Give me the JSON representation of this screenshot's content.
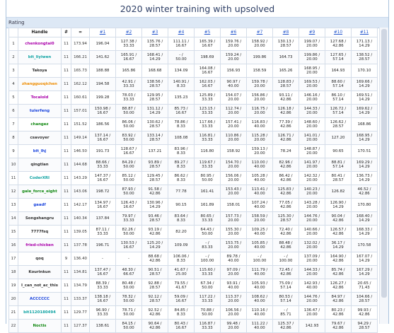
{
  "page": {
    "title": "2020 winter training with upsolved"
  },
  "panel": {
    "label": "Rating"
  },
  "columns": [
    "",
    "Handle",
    "#",
    "=",
    "#1",
    "#2",
    "#3",
    "#4",
    "#5",
    "#6",
    "#7",
    "#8",
    "#9",
    "#10",
    "#11"
  ],
  "colors": {
    "red": "#e0201d",
    "orange": "#ee8c00",
    "violet": "#aa00aa",
    "blue": "#1a44dd",
    "cyan": "#10a3a3",
    "green": "#118811",
    "gray": "#333333"
  },
  "rows": [
    {
      "rank": "1",
      "handle": "chenkongtai0",
      "color": "violet",
      "solved": "11",
      "total": "173.94",
      "cells": [
        "196.04",
        "127.38 / 33.33",
        "135.76 / 28.57",
        "111.11 / 16.67",
        "165.39 / 16.67",
        "159.76 / 20.00",
        "158.92 / 20.00",
        "130.13 / 28.57",
        "199.07 / 20.00",
        "127.68 / 42.86",
        "171.13 / 14.29"
      ]
    },
    {
      "rank": "2",
      "handle": "bit_liyiwen",
      "color": "cyan",
      "solved": "11",
      "total": "166.21",
      "cells": [
        "141.62",
        "165.91 / 16.67",
        "168.41 / 14.29",
        "- / 50.00",
        "198.69",
        "159.24 / 20.00",
        "199.86",
        "164.73",
        "199.86 / 20.00",
        "127.65 / 57.14",
        "138.52 / 28.57"
      ]
    },
    {
      "rank": "3",
      "handle": "Takoya",
      "color": "gray",
      "solved": "11",
      "total": "165.73",
      "cells": [
        "188.88",
        "165.86",
        "168.68",
        "134.09",
        "164.08 / 16.67",
        "156.93",
        "158.59",
        "165.26",
        "168.95 / 20.00",
        "164.93",
        "170.10"
      ]
    },
    {
      "rank": "4",
      "handle": "zhangguoqichen",
      "color": "orange",
      "solved": "11",
      "total": "162.12",
      "cells": [
        "194.58",
        "42.91 / 33.33",
        "138.56 / 28.57",
        "140.91 / 8.33",
        "162.03 / 16.67",
        "90.97 / 40.00",
        "159.78 / 20.00",
        "128.83 / 28.57",
        "169.53 / 20.00",
        "88.60 / 57.14",
        "169.66 / 14.29"
      ]
    },
    {
      "rank": "5",
      "handle": "Tocalold",
      "color": "violet",
      "solved": "11",
      "total": "160.61",
      "cells": [
        "199.28",
        "78.03 / 33.33",
        "129.95 / 28.57",
        "135.23",
        "125.89 / 33.33",
        "154.07 / 20.00",
        "156.86 / 20.00",
        "93.11 / 42.86",
        "146.16 / 20.00",
        "86.10 / 57.14",
        "169.51 / 14.29"
      ]
    },
    {
      "rank": "6",
      "handle": "tulerfeng",
      "color": "blue",
      "solved": "11",
      "total": "157.01",
      "cells": [
        "150.98 / 16.67",
        "88.87 / 50.00",
        "131.12 / 14.29",
        "85.73 / 16.67",
        "123.15 / 33.33",
        "112.74 / 20.00",
        "116.75 / 20.00",
        "126.18 / 42.86",
        "144.33 / 20.00",
        "126.72 / 57.14",
        "169.62 / 14.29"
      ]
    },
    {
      "rank": "7",
      "handle": "changez",
      "color": "green",
      "solved": "11",
      "total": "151.52",
      "cells": [
        "186.56",
        "86.06 / 50.00",
        "130.62 / 28.57",
        "78.86 / 8.33",
        "117.66 / 33.33",
        "157.41 / 20.00",
        "116.83 / 40.00",
        "77.39 / 42.86",
        "148.60 / 20.00",
        "126.62 / 28.57",
        "168.86"
      ]
    },
    {
      "rank": "8",
      "handle": "csavoyer",
      "color": "gray",
      "solved": "11",
      "total": "149.14",
      "cells": [
        "137.14 / 16.67",
        "83.92 / 50.00",
        "133.14 / 28.57",
        "108.08",
        "116.81 / 33.33",
        "110.86 / 20.00",
        "115.28 / 20.00",
        "126.71 / 42.86",
        "141.01 / 20.00",
        "127.20",
        "168.95 / 14.29"
      ]
    },
    {
      "rank": "9",
      "handle": "bit_lhj",
      "color": "blue",
      "solved": "11",
      "total": "146.50",
      "cells": [
        "191.73",
        "128.67 / 16.67",
        "137.21",
        "83.96 / 8.33",
        "116.80",
        "158.92",
        "159.13 / 20.00",
        "78.24",
        "148.87 / 20.00",
        "90.65",
        "170.51"
      ]
    },
    {
      "rank": "10",
      "handle": "qingtian",
      "color": "gray",
      "solved": "11",
      "total": "144.68",
      "cells": [
        "88.66 / 33.33",
        "84.29 / 50.00",
        "93.89 / 28.57",
        "89.27 / 8.33",
        "119.67 / 33.33",
        "154.70 / 20.00",
        "110.00 / 40.00",
        "82.96 / 42.86",
        "141.97 / 20.00",
        "88.81 / 57.14",
        "169.29 / 14.29"
      ]
    },
    {
      "rank": "11",
      "handle": "CoderXRI",
      "color": "cyan",
      "solved": "11",
      "total": "143.29",
      "cells": [
        "147.37 / 16.67",
        "85.12 / 50.00",
        "129.45 / 28.57",
        "86.62 / 8.33",
        "80.95 / 50.00",
        "156.06 / 20.00",
        "105.28 / 40.00",
        "86.42 / 42.86",
        "142.32 / 20.00",
        "80.41 / 28.57",
        "136.73 / 14.29"
      ]
    },
    {
      "rank": "12",
      "handle": "gale_force_eight",
      "color": "green",
      "solved": "11",
      "total": "143.06",
      "cells": [
        "198.72",
        "87.93 / 50.00",
        "91.58 / 42.86",
        "77.78",
        "161.41",
        "153.43 / 20.00",
        "113.41 / 40.00",
        "125.83 / 42.86",
        "140.23 / 20.00",
        "126.82",
        "46.52 / 42.86"
      ]
    },
    {
      "rank": "13",
      "handle": "gaadf",
      "color": "blue",
      "solved": "11",
      "total": "142.17",
      "cells": [
        "134.97 / 16.67",
        "126.43 / 16.67",
        "130.96 / 14.29",
        "90.15",
        "161.89",
        "158.01",
        "107.24 / 40.00",
        "77.05 / 42.86",
        "143.28 / 20.00",
        "126.90 / 14.29",
        "170.80"
      ]
    },
    {
      "rank": "14",
      "handle": "Songshangru",
      "color": "gray",
      "solved": "11",
      "total": "140.34",
      "cells": [
        "137.84",
        "79.97 / 33.33",
        "93.46 / 28.57",
        "83.64 / 8.33",
        "80.65 / 33.33",
        "157.73 / 20.00",
        "158.59 / 20.00",
        "125.30 / 28.57",
        "144.76 / 20.00",
        "90.04 / 42.86",
        "168.40 / 14.29"
      ]
    },
    {
      "rank": "15",
      "handle": "7777fsq",
      "color": "gray",
      "solved": "11",
      "total": "139.05",
      "cells": [
        "87.11 / 33.33",
        "82.26 / 50.00",
        "93.19 / 42.86",
        "82.20",
        "64.43 / 50.00",
        "155.30 / 20.00",
        "109.25 / 40.00",
        "72.40 / 42.86",
        "140.66 / 20.00",
        "126.57 / 42.86",
        "168.33 / 14.29"
      ]
    },
    {
      "rank": "16",
      "handle": "fried-chicken",
      "color": "violet",
      "solved": "11",
      "total": "137.78",
      "cells": [
        "196.71",
        "130.53 / 16.67",
        "125.20 / 14.29",
        "109.09",
        "- / 83.33",
        "153.75 / 20.00",
        "105.85 / 40.00",
        "88.48 / 42.86",
        "132.02 / 20.00",
        "36.17 / 14.29",
        "170.58"
      ]
    },
    {
      "rank": "17",
      "handle": "qoq",
      "color": "gray",
      "solved": "9",
      "total": "136.40",
      "cells": [
        "-",
        "-",
        "88.68 / 42.86",
        "106.06 / 8.33",
        "- / 100.00",
        "89.78 / 40.00",
        "- / 100.00",
        "- / 100.00",
        "137.09 / 20.00",
        "164.90 / 42.86",
        "167.07 / 14.29"
      ]
    },
    {
      "rank": "18",
      "handle": "Kourinkun",
      "color": "gray",
      "solved": "11",
      "total": "134.81",
      "cells": [
        "137.47 / 16.67",
        "48.30 / 66.67",
        "90.51 / 28.57",
        "41.67 / 25.00",
        "115.60 / 33.33",
        "97.09 / 20.00",
        "111.79 / 40.00",
        "72.45 / 42.86",
        "144.33 / 20.00",
        "85.74 / 42.86",
        "167.29 / 14.29"
      ]
    },
    {
      "rank": "19",
      "handle": "I_can_not_ac_this",
      "color": "gray",
      "solved": "11",
      "total": "134.79",
      "cells": [
        "88.39 / 33.33",
        "80.48 / 50.00",
        "92.88 / 28.57",
        "79.55 / 41.67",
        "67.34 / 50.00",
        "93.91 / 40.00",
        "105.93 / 40.00",
        "75.09 / 57.14",
        "142.93 / 40.00",
        "126.27 / 42.86",
        "20.65 / 71.43"
      ]
    },
    {
      "rank": "20",
      "handle": "ACCCCCC",
      "color": "blue",
      "solved": "11",
      "total": "133.37",
      "cells": [
        "138.18 / 16.67",
        "78.32 / 50.00",
        "92.12 / 28.57",
        "59.09 / 16.67",
        "117.22 / 33.33",
        "113.37 / 20.00",
        "108.62 / 40.00",
        "80.53 / 57.14",
        "144.76 / 20.00",
        "84.97 / 42.86",
        "104.66 / 28.57"
      ]
    },
    {
      "rank": "21",
      "handle": "bit1120180494",
      "color": "cyan",
      "solved": "11",
      "total": "129.77",
      "cells": [
        "96.90 / 33.33",
        "78.71 / 50.00",
        "92.52 / 42.86",
        "84.85 / 8.33",
        "70.88 / 50.00",
        "106.56 / 20.00",
        "110.16 / 40.00",
        "- / 85.71",
        "136.47 / 20.00",
        "80.23 / 42.86",
        "99.93 / 42.86"
      ]
    },
    {
      "rank": "22",
      "handle": "Noctis",
      "color": "green",
      "solved": "11",
      "total": "127.37",
      "cells": [
        "138.61",
        "84.15 / 50.00",
        "90.64 / 42.86",
        "80.43 / 16.67",
        "116.87 / 33.33",
        "99.48 / 20.00",
        "111.22 / 40.00",
        "125.37 / 42.86",
        "142.93",
        "79.67 / 42.86",
        "94.29 / 28.57"
      ]
    }
  ]
}
